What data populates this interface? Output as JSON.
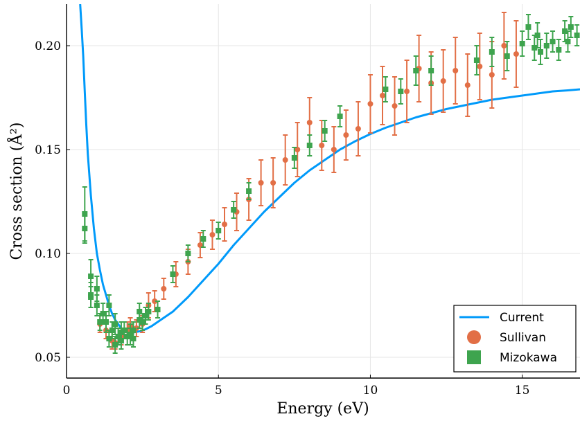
{
  "chart_data": {
    "type": "scatter",
    "title": "",
    "xlabel": "Energy (eV)",
    "ylabel": "Cross section (Å²)",
    "xlim": [
      0,
      16.9
    ],
    "ylim": [
      0.04,
      0.22
    ],
    "xticks": [
      0,
      5,
      10,
      15
    ],
    "xtick_labels": [
      "0",
      "5",
      "10",
      "15"
    ],
    "yticks": [
      0.05,
      0.1,
      0.15,
      0.2
    ],
    "ytick_labels": [
      "0.05",
      "0.10",
      "0.15",
      "0.20"
    ],
    "grid": true,
    "legend_position": "bottom-right",
    "series": [
      {
        "name": "Current",
        "kind": "line",
        "color": "#009AFA",
        "x": [
          0.45,
          0.5,
          0.55,
          0.6,
          0.65,
          0.7,
          0.8,
          0.9,
          1.0,
          1.1,
          1.2,
          1.3,
          1.4,
          1.5,
          1.6,
          1.7,
          1.8,
          1.9,
          2.0,
          2.2,
          2.4,
          2.6,
          2.8,
          3.0,
          3.5,
          4.0,
          4.5,
          5.0,
          5.5,
          6.0,
          6.5,
          7.0,
          7.5,
          8.0,
          8.5,
          9.0,
          9.5,
          10.0,
          10.5,
          11.0,
          11.5,
          12.0,
          12.5,
          13.0,
          13.5,
          14.0,
          14.5,
          15.0,
          15.5,
          16.0,
          16.5,
          16.9
        ],
        "y": [
          0.22,
          0.208,
          0.195,
          0.178,
          0.162,
          0.148,
          0.128,
          0.112,
          0.1,
          0.092,
          0.085,
          0.08,
          0.075,
          0.071,
          0.068,
          0.066,
          0.064,
          0.063,
          0.062,
          0.062,
          0.0625,
          0.0635,
          0.065,
          0.067,
          0.072,
          0.079,
          0.087,
          0.095,
          0.104,
          0.112,
          0.12,
          0.127,
          0.134,
          0.14,
          0.145,
          0.15,
          0.154,
          0.1575,
          0.1605,
          0.163,
          0.1655,
          0.1675,
          0.1695,
          0.171,
          0.1725,
          0.174,
          0.175,
          0.176,
          0.177,
          0.178,
          0.1785,
          0.179
        ]
      },
      {
        "name": "Sullivan",
        "kind": "circle",
        "color": "#E26F46",
        "points": [
          [
            1.1,
            0.066,
            0.004
          ],
          [
            1.3,
            0.063,
            0.004
          ],
          [
            1.5,
            0.058,
            0.004
          ],
          [
            1.6,
            0.057,
            0.003
          ],
          [
            1.8,
            0.06,
            0.004
          ],
          [
            2.0,
            0.063,
            0.004
          ],
          [
            2.1,
            0.065,
            0.004
          ],
          [
            2.3,
            0.064,
            0.004
          ],
          [
            2.5,
            0.066,
            0.004
          ],
          [
            2.7,
            0.075,
            0.006
          ],
          [
            2.9,
            0.077,
            0.005
          ],
          [
            3.2,
            0.083,
            0.005
          ],
          [
            3.6,
            0.09,
            0.006
          ],
          [
            4.0,
            0.096,
            0.006
          ],
          [
            4.4,
            0.104,
            0.006
          ],
          [
            4.8,
            0.109,
            0.007
          ],
          [
            5.2,
            0.114,
            0.008
          ],
          [
            5.6,
            0.12,
            0.009
          ],
          [
            6.0,
            0.126,
            0.01
          ],
          [
            6.4,
            0.134,
            0.011
          ],
          [
            6.8,
            0.134,
            0.012
          ],
          [
            7.2,
            0.145,
            0.012
          ],
          [
            7.6,
            0.15,
            0.013
          ],
          [
            8.0,
            0.163,
            0.012
          ],
          [
            8.4,
            0.152,
            0.012
          ],
          [
            8.8,
            0.15,
            0.011
          ],
          [
            9.2,
            0.157,
            0.012
          ],
          [
            9.6,
            0.16,
            0.013
          ],
          [
            10.0,
            0.172,
            0.014
          ],
          [
            10.4,
            0.176,
            0.014
          ],
          [
            10.8,
            0.171,
            0.014
          ],
          [
            11.2,
            0.178,
            0.015
          ],
          [
            11.6,
            0.189,
            0.016
          ],
          [
            12.0,
            0.182,
            0.015
          ],
          [
            12.4,
            0.183,
            0.015
          ],
          [
            12.8,
            0.188,
            0.016
          ],
          [
            13.2,
            0.181,
            0.015
          ],
          [
            13.6,
            0.19,
            0.016
          ],
          [
            14.0,
            0.186,
            0.016
          ],
          [
            14.4,
            0.2,
            0.016
          ],
          [
            14.8,
            0.196,
            0.016
          ]
        ]
      },
      {
        "name": "Mizokawa",
        "kind": "square",
        "color": "#3EA44E",
        "points": [
          [
            0.6,
            0.119,
            0.013
          ],
          [
            0.6,
            0.112,
            0.007
          ],
          [
            0.8,
            0.089,
            0.008
          ],
          [
            0.8,
            0.08,
            0.006
          ],
          [
            0.8,
            0.079,
            0.005
          ],
          [
            1.0,
            0.083,
            0.006
          ],
          [
            1.0,
            0.075,
            0.005
          ],
          [
            1.1,
            0.067,
            0.004
          ],
          [
            1.2,
            0.071,
            0.005
          ],
          [
            1.3,
            0.067,
            0.005
          ],
          [
            1.4,
            0.075,
            0.005
          ],
          [
            1.4,
            0.059,
            0.004
          ],
          [
            1.5,
            0.063,
            0.004
          ],
          [
            1.6,
            0.056,
            0.004
          ],
          [
            1.6,
            0.066,
            0.005
          ],
          [
            1.7,
            0.06,
            0.004
          ],
          [
            1.8,
            0.058,
            0.004
          ],
          [
            1.8,
            0.062,
            0.005
          ],
          [
            1.9,
            0.063,
            0.004
          ],
          [
            2.0,
            0.06,
            0.004
          ],
          [
            2.1,
            0.061,
            0.005
          ],
          [
            2.2,
            0.059,
            0.004
          ],
          [
            2.2,
            0.063,
            0.004
          ],
          [
            2.4,
            0.072,
            0.004
          ],
          [
            2.4,
            0.068,
            0.004
          ],
          [
            2.5,
            0.067,
            0.004
          ],
          [
            2.6,
            0.07,
            0.004
          ],
          [
            2.7,
            0.072,
            0.004
          ],
          [
            3.0,
            0.073,
            0.004
          ],
          [
            3.5,
            0.09,
            0.004
          ],
          [
            4.0,
            0.1,
            0.004
          ],
          [
            4.5,
            0.107,
            0.004
          ],
          [
            5.0,
            0.111,
            0.004
          ],
          [
            5.5,
            0.121,
            0.004
          ],
          [
            6.0,
            0.13,
            0.004
          ],
          [
            7.5,
            0.146,
            0.005
          ],
          [
            8.0,
            0.152,
            0.005
          ],
          [
            8.5,
            0.159,
            0.005
          ],
          [
            9.0,
            0.166,
            0.005
          ],
          [
            10.5,
            0.179,
            0.006
          ],
          [
            11.0,
            0.178,
            0.006
          ],
          [
            11.5,
            0.188,
            0.007
          ],
          [
            12.0,
            0.188,
            0.007
          ],
          [
            13.5,
            0.193,
            0.007
          ],
          [
            14.0,
            0.197,
            0.007
          ],
          [
            14.5,
            0.195,
            0.007
          ],
          [
            15.0,
            0.201,
            0.006
          ],
          [
            15.2,
            0.209,
            0.006
          ],
          [
            15.4,
            0.199,
            0.006
          ],
          [
            15.5,
            0.205,
            0.006
          ],
          [
            15.6,
            0.197,
            0.006
          ],
          [
            15.8,
            0.2,
            0.006
          ],
          [
            16.0,
            0.202,
            0.005
          ],
          [
            16.2,
            0.198,
            0.005
          ],
          [
            16.4,
            0.207,
            0.005
          ],
          [
            16.5,
            0.202,
            0.005
          ],
          [
            16.6,
            0.209,
            0.005
          ],
          [
            16.8,
            0.205,
            0.005
          ]
        ]
      }
    ]
  }
}
